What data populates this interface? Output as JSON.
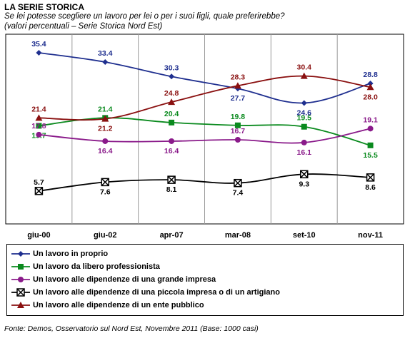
{
  "header": {
    "title": "LA SERIE STORICA",
    "subtitle": "Se lei potesse scegliere un lavoro per lei o per i suoi figli, quale preferirebbe?",
    "note": "(valori percentuali – Serie Storica Nord Est)"
  },
  "footer": "Fonte: Demos, Osservatorio sul Nord Est, Novembre  2011 (Base: 1000 casi)",
  "chart_data": {
    "type": "line",
    "categories": [
      "giu-00",
      "giu-02",
      "apr-07",
      "mar-08",
      "set-10",
      "nov-11"
    ],
    "ylim": [
      0,
      38
    ],
    "grid": true,
    "legend_position": "bottom",
    "series": [
      {
        "name": "Un lavoro in proprio",
        "values": [
          35.4,
          33.4,
          30.3,
          27.7,
          24.6,
          28.8
        ],
        "color": "#1f2f8f",
        "marker": "diamond"
      },
      {
        "name": "Un lavoro da libero professionista",
        "values": [
          19.7,
          21.4,
          20.4,
          19.8,
          19.5,
          15.5
        ],
        "color": "#0a8a1e",
        "marker": "square"
      },
      {
        "name": "Un lavoro alle dipendenze di una grande impresa",
        "values": [
          17.8,
          16.4,
          16.4,
          16.7,
          16.1,
          19.1
        ],
        "color": "#8a1a8a",
        "marker": "circle"
      },
      {
        "name": "Un lavoro alle dipendenze di una piccola impresa o di un artigiano",
        "values": [
          5.7,
          7.6,
          8.1,
          7.4,
          9.3,
          8.6
        ],
        "color": "#000000",
        "marker": "xsquare"
      },
      {
        "name": "Un lavoro alle dipendenze di un ente pubblico",
        "values": [
          21.4,
          21.2,
          24.8,
          28.3,
          30.4,
          28.0
        ],
        "color": "#8a1010",
        "marker": "triangle"
      }
    ]
  }
}
